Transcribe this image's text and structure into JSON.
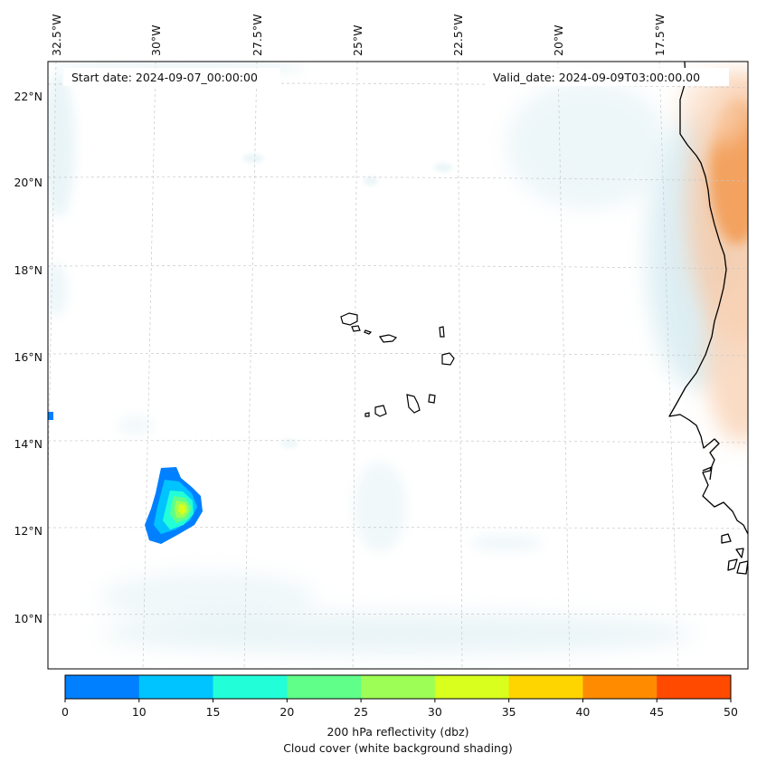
{
  "map": {
    "start_date_text": "Start date: 2024-09-07_00:00:00",
    "valid_date_text": "Valid_date: 2024-09-09T03:00:00.00",
    "lon_labels": [
      "32.5°W",
      "30°W",
      "27.5°W",
      "25°W",
      "22.5°W",
      "20°W",
      "17.5°W"
    ],
    "lat_labels": [
      "22°N",
      "20°N",
      "18°N",
      "16°N",
      "14°N",
      "12°N",
      "10°N"
    ]
  },
  "colorbar": {
    "ticks": [
      "0",
      "10",
      "15",
      "20",
      "25",
      "30",
      "35",
      "40",
      "45",
      "50"
    ],
    "colors": [
      "#0080ff",
      "#00c4ff",
      "#22ffd8",
      "#5fff8a",
      "#9dff55",
      "#d8ff1e",
      "#ffd500",
      "#ff8c00",
      "#ff4a00"
    ],
    "label_line1": "200 hPa reflectivity (dbz)",
    "label_line2": "Cloud cover (white background shading)"
  }
}
